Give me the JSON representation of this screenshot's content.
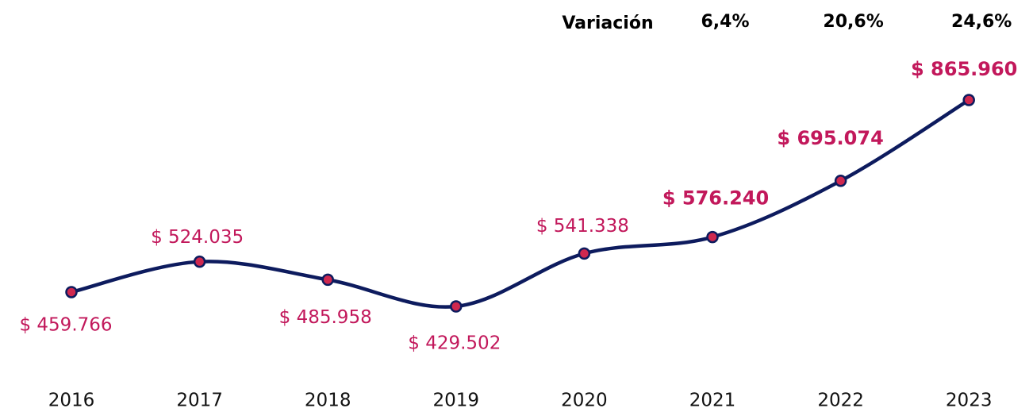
{
  "chart_data": {
    "type": "line",
    "categories": [
      "2016",
      "2017",
      "2018",
      "2019",
      "2020",
      "2021",
      "2022",
      "2023"
    ],
    "values": [
      459766,
      524035,
      485958,
      429502,
      541338,
      576240,
      695074,
      865960
    ],
    "value_labels": [
      "$ 459.766",
      "$ 524.035",
      "$ 485.958",
      "$ 429.502",
      "$ 541.338",
      "$ 576.240",
      "$ 695.074",
      "$ 865.960"
    ],
    "color": "#0d1b5e",
    "marker_color": "#d0284f",
    "label_color": "#c2185b",
    "variation": {
      "label": "Variación",
      "values": [
        null,
        null,
        null,
        null,
        null,
        6.4,
        20.6,
        24.6
      ],
      "value_labels": [
        null,
        null,
        null,
        null,
        null,
        "6,4%",
        "20,6%",
        "24,6%"
      ]
    }
  }
}
